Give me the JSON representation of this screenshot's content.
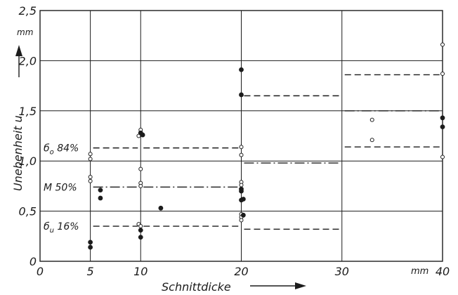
{
  "chart_data": {
    "type": "scatter",
    "xlabel": "Schnittdicke",
    "ylabel": "Unebenheit u",
    "x_unit": "mm",
    "y_unit": "mm",
    "xlim": [
      0,
      40
    ],
    "ylim": [
      0,
      2.5
    ],
    "x_ticks": [
      0,
      5,
      10,
      20,
      30,
      40
    ],
    "y_ticks": [
      0,
      0.5,
      1.0,
      1.5,
      2.0,
      2.5
    ],
    "x_tick_labels": [
      "0",
      "5",
      "10",
      "20",
      "30",
      "40"
    ],
    "y_tick_labels": [
      "0",
      "0,5",
      "1,0",
      "1,5",
      "2,0",
      "2,5"
    ],
    "grid": true,
    "series": [
      {
        "marker": "open-circle",
        "points": [
          [
            5,
            1.07
          ],
          [
            5,
            1.02
          ],
          [
            5,
            0.84
          ],
          [
            5,
            0.8
          ],
          [
            9.8,
            1.25
          ],
          [
            10,
            1.31
          ],
          [
            10,
            0.92
          ],
          [
            10,
            0.78
          ],
          [
            10,
            0.75
          ],
          [
            9.8,
            0.37
          ],
          [
            10,
            0.35
          ],
          [
            20,
            1.14
          ],
          [
            20,
            1.06
          ],
          [
            20,
            0.79
          ],
          [
            20,
            0.76
          ],
          [
            20,
            0.47
          ],
          [
            20,
            0.44
          ],
          [
            20,
            0.41
          ],
          [
            33,
            1.41
          ],
          [
            33,
            1.21
          ],
          [
            40,
            2.16
          ],
          [
            40,
            1.87
          ],
          [
            40,
            1.04
          ]
        ]
      },
      {
        "marker": "filled-circle",
        "points": [
          [
            5,
            0.19
          ],
          [
            5,
            0.14
          ],
          [
            6,
            0.71
          ],
          [
            6,
            0.63
          ],
          [
            10,
            1.28
          ],
          [
            10.2,
            1.26
          ],
          [
            10,
            0.31
          ],
          [
            10,
            0.24
          ],
          [
            12,
            0.53
          ],
          [
            20,
            1.91
          ],
          [
            20,
            1.66
          ],
          [
            20,
            0.72
          ],
          [
            20,
            0.7
          ],
          [
            20.2,
            0.62
          ],
          [
            20,
            0.61
          ],
          [
            20.2,
            0.46
          ],
          [
            40,
            1.43
          ],
          [
            40,
            1.34
          ]
        ]
      }
    ],
    "reference_lines": [
      {
        "label": "б_o 84%",
        "style": "dashed",
        "segments": [
          [
            5,
            10,
            1.13
          ],
          [
            10,
            20,
            1.13
          ],
          [
            20,
            30,
            1.65
          ],
          [
            30,
            40,
            1.86
          ]
        ]
      },
      {
        "label": "M 50%",
        "style": "dash-dot",
        "segments": [
          [
            5,
            10,
            0.74
          ],
          [
            10,
            20,
            0.74
          ],
          [
            20,
            30,
            0.98
          ],
          [
            30,
            40,
            1.5
          ]
        ]
      },
      {
        "label": "б_u 16%",
        "style": "dashed",
        "segments": [
          [
            5,
            10,
            0.35
          ],
          [
            10,
            20,
            0.35
          ],
          [
            20,
            30,
            0.32
          ],
          [
            30,
            40,
            1.14
          ]
        ]
      }
    ]
  }
}
